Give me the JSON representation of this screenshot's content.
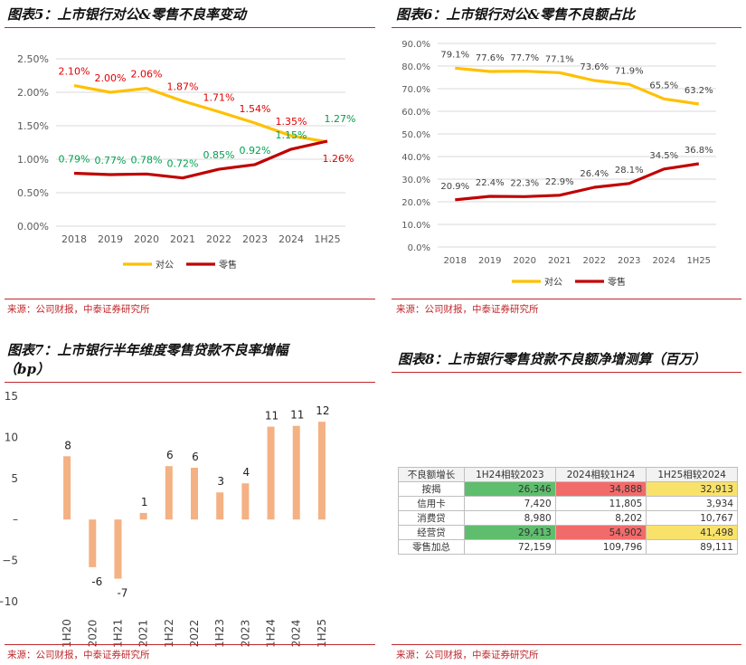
{
  "panels": {
    "p5": {
      "title": "图表5：上市银行对公&零售不良率变动",
      "source": "来源：公司财报，中泰证券研究所"
    },
    "p6": {
      "title": "图表6：上市银行对公&零售不良额占比",
      "source": "来源：公司财报，中泰证券研究所"
    },
    "p7": {
      "title_line1": "图表7：上市银行半年维度零售贷款不良率增幅",
      "title_line2": "（bp）",
      "source": "来源：公司财报，中泰证券研究所"
    },
    "p8": {
      "title": "图表8：上市银行零售贷款不良额净增测算（百万）",
      "source": "来源：公司财报，中泰证券研究所"
    }
  },
  "colors": {
    "accent": "#c0282d",
    "corp": "#ffc000",
    "retail": "#c00000",
    "bar": "#f4b183",
    "green_label": "#00a050",
    "red_label": "#e00000"
  },
  "chart_data": [
    {
      "type": "line",
      "title": "图表5：上市银行对公&零售不良率变动",
      "categories": [
        "2018",
        "2019",
        "2020",
        "2021",
        "2022",
        "2023",
        "2024",
        "1H25"
      ],
      "yticks": [
        "0.00%",
        "0.50%",
        "1.00%",
        "1.50%",
        "2.00%",
        "2.50%"
      ],
      "ylim": [
        0,
        2.5
      ],
      "series": [
        {
          "name": "对公",
          "values": [
            2.1,
            2.0,
            2.06,
            1.87,
            1.71,
            1.54,
            1.35,
            1.26
          ],
          "labels": [
            "2.10%",
            "2.00%",
            "2.06%",
            "1.87%",
            "1.71%",
            "1.54%",
            "1.35%",
            "1.26%"
          ]
        },
        {
          "name": "零售",
          "values": [
            0.79,
            0.77,
            0.78,
            0.72,
            0.85,
            0.92,
            1.15,
            1.27
          ],
          "labels": [
            "0.79%",
            "0.77%",
            "0.78%",
            "0.72%",
            "0.85%",
            "0.92%",
            "1.15%",
            "1.27%"
          ]
        }
      ]
    },
    {
      "type": "line",
      "title": "图表6：上市银行对公&零售不良额占比",
      "categories": [
        "2018",
        "2019",
        "2020",
        "2021",
        "2022",
        "2023",
        "2024",
        "1H25"
      ],
      "yticks": [
        "0.0%",
        "10.0%",
        "20.0%",
        "30.0%",
        "40.0%",
        "50.0%",
        "60.0%",
        "70.0%",
        "80.0%",
        "90.0%"
      ],
      "ylim": [
        0,
        90
      ],
      "series": [
        {
          "name": "对公",
          "values": [
            79.1,
            77.6,
            77.7,
            77.1,
            73.6,
            71.9,
            65.5,
            63.2
          ],
          "labels": [
            "79.1%",
            "77.6%",
            "77.7%",
            "77.1%",
            "73.6%",
            "71.9%",
            "65.5%",
            "63.2%"
          ]
        },
        {
          "name": "零售",
          "values": [
            20.9,
            22.4,
            22.3,
            22.9,
            26.4,
            28.1,
            34.5,
            36.8
          ],
          "labels": [
            "20.9%",
            "22.4%",
            "22.3%",
            "22.9%",
            "26.4%",
            "28.1%",
            "34.5%",
            "36.8%"
          ]
        }
      ]
    },
    {
      "type": "bar",
      "title": "图表7：上市银行半年维度零售贷款不良率增幅（bp）",
      "categories": [
        "1H20",
        "2020",
        "1H21",
        "2021",
        "1H22",
        "2022",
        "1H23",
        "2023",
        "1H24",
        "2024",
        "1H25"
      ],
      "values": [
        7.7,
        -5.8,
        -7.2,
        0.8,
        6.5,
        6.3,
        3.3,
        4.4,
        11.3,
        11.4,
        11.9
      ],
      "labels": [
        "8",
        "-6",
        "-7",
        "1",
        "6",
        "6",
        "3",
        "4",
        "11",
        "11",
        "12"
      ],
      "yticks": [
        "15",
        "10",
        "5",
        "–",
        "−5",
        "−10"
      ],
      "ylim": [
        -10,
        15
      ]
    },
    {
      "type": "table",
      "title": "图表8：上市银行零售贷款不良额净增测算（百万）",
      "columns": [
        "不良额增长",
        "1H24相较2023",
        "2024相较1H24",
        "1H25相较2024"
      ],
      "rows": [
        {
          "label": "按揭",
          "cells": [
            "26,346",
            "34,888",
            "32,913"
          ],
          "hl": [
            "g",
            "r",
            "y"
          ]
        },
        {
          "label": "信用卡",
          "cells": [
            "7,420",
            "11,805",
            "3,934"
          ],
          "hl": [
            "",
            "",
            ""
          ]
        },
        {
          "label": "消费贷",
          "cells": [
            "8,980",
            "8,202",
            "10,767"
          ],
          "hl": [
            "",
            "",
            ""
          ]
        },
        {
          "label": "经营贷",
          "cells": [
            "29,413",
            "54,902",
            "41,498"
          ],
          "hl": [
            "g",
            "r",
            "y"
          ]
        },
        {
          "label": "零售加总",
          "cells": [
            "72,159",
            "109,796",
            "89,111"
          ],
          "hl": [
            "",
            "",
            ""
          ]
        }
      ]
    }
  ]
}
